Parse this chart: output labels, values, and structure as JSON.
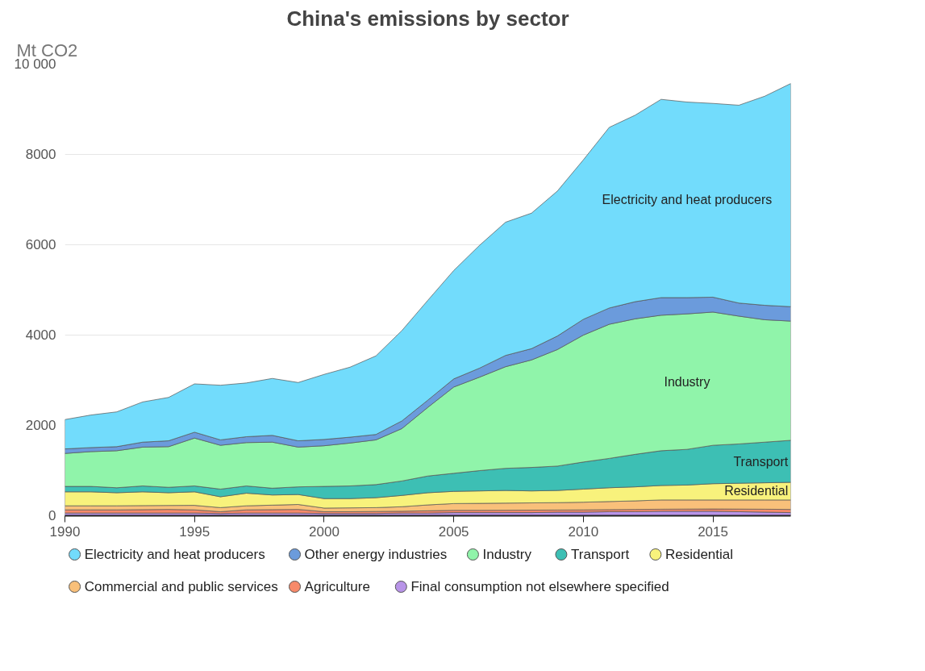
{
  "chart_data": {
    "type": "area",
    "stacked": true,
    "title": "China's emissions by sector",
    "ylabel": "Mt CO2",
    "x": [
      1990,
      1991,
      1992,
      1993,
      1994,
      1995,
      1996,
      1997,
      1998,
      1999,
      2000,
      2001,
      2002,
      2003,
      2004,
      2005,
      2006,
      2007,
      2008,
      2009,
      2010,
      2011,
      2012,
      2013,
      2014,
      2015,
      2016,
      2017,
      2018
    ],
    "xlim": [
      1990,
      2018
    ],
    "xticks": [
      1990,
      1995,
      2000,
      2005,
      2010,
      2015
    ],
    "ylim": [
      0,
      10000
    ],
    "yticks": [
      0,
      2000,
      4000,
      6000,
      8000,
      {
        "value": 10000,
        "label": "10 000"
      }
    ],
    "grid": "y",
    "legend": "bottom",
    "series": [
      {
        "name": "Final consumption not elsewhere specified",
        "color": "#b894e8",
        "values": [
          60,
          60,
          60,
          60,
          60,
          60,
          50,
          60,
          60,
          60,
          50,
          50,
          50,
          60,
          60,
          70,
          70,
          70,
          70,
          80,
          80,
          90,
          90,
          100,
          100,
          100,
          90,
          80,
          70
        ]
      },
      {
        "name": "Agriculture",
        "color": "#f78a6a",
        "values": [
          70,
          70,
          70,
          75,
          80,
          70,
          40,
          70,
          75,
          80,
          40,
          40,
          45,
          40,
          50,
          50,
          50,
          52,
          54,
          47,
          50,
          45,
          50,
          45,
          48,
          50,
          58,
          65,
          70
        ]
      },
      {
        "name": "Commercial and public services",
        "color": "#f9c07a",
        "values": [
          90,
          90,
          90,
          90,
          88,
          100,
          90,
          90,
          100,
          110,
          80,
          85,
          85,
          100,
          130,
          150,
          155,
          158,
          161,
          163,
          170,
          180,
          190,
          205,
          202,
          200,
          202,
          205,
          210
        ]
      },
      {
        "name": "Residential",
        "color": "#f8f27c",
        "values": [
          310,
          310,
          290,
          305,
          282,
          300,
          240,
          280,
          225,
          220,
          210,
          205,
          220,
          250,
          270,
          270,
          275,
          280,
          265,
          270,
          290,
          305,
          310,
          320,
          330,
          360,
          370,
          380,
          390
        ]
      },
      {
        "name": "Transport",
        "color": "#3dbfb4",
        "values": [
          120,
          120,
          110,
          130,
          120,
          130,
          170,
          160,
          150,
          170,
          270,
          280,
          290,
          320,
          370,
          400,
          450,
          490,
          520,
          540,
          600,
          650,
          720,
          770,
          790,
          850,
          870,
          900,
          930
        ]
      },
      {
        "name": "Industry",
        "color": "#90f4aa",
        "values": [
          730,
          770,
          820,
          860,
          900,
          1060,
          970,
          960,
          1020,
          880,
          900,
          950,
          990,
          1160,
          1520,
          1910,
          2070,
          2250,
          2380,
          2580,
          2810,
          2970,
          3000,
          3000,
          3000,
          2950,
          2830,
          2710,
          2640
        ]
      },
      {
        "name": "Other energy industries",
        "color": "#6b9bdc",
        "values": [
          100,
          90,
          90,
          110,
          130,
          130,
          120,
          130,
          150,
          140,
          140,
          130,
          120,
          170,
          160,
          180,
          200,
          250,
          250,
          300,
          350,
          360,
          380,
          390,
          360,
          330,
          290,
          320,
          320
        ]
      },
      {
        "name": "Electricity and heat producers",
        "color": "#72dcfc",
        "values": [
          650,
          720,
          770,
          890,
          960,
          1070,
          1210,
          1190,
          1260,
          1290,
          1440,
          1550,
          1740,
          2000,
          2210,
          2400,
          2720,
          2950,
          3000,
          3210,
          3530,
          4000,
          4130,
          4390,
          4330,
          4290,
          4380,
          4630,
          4940
        ]
      }
    ]
  }
}
